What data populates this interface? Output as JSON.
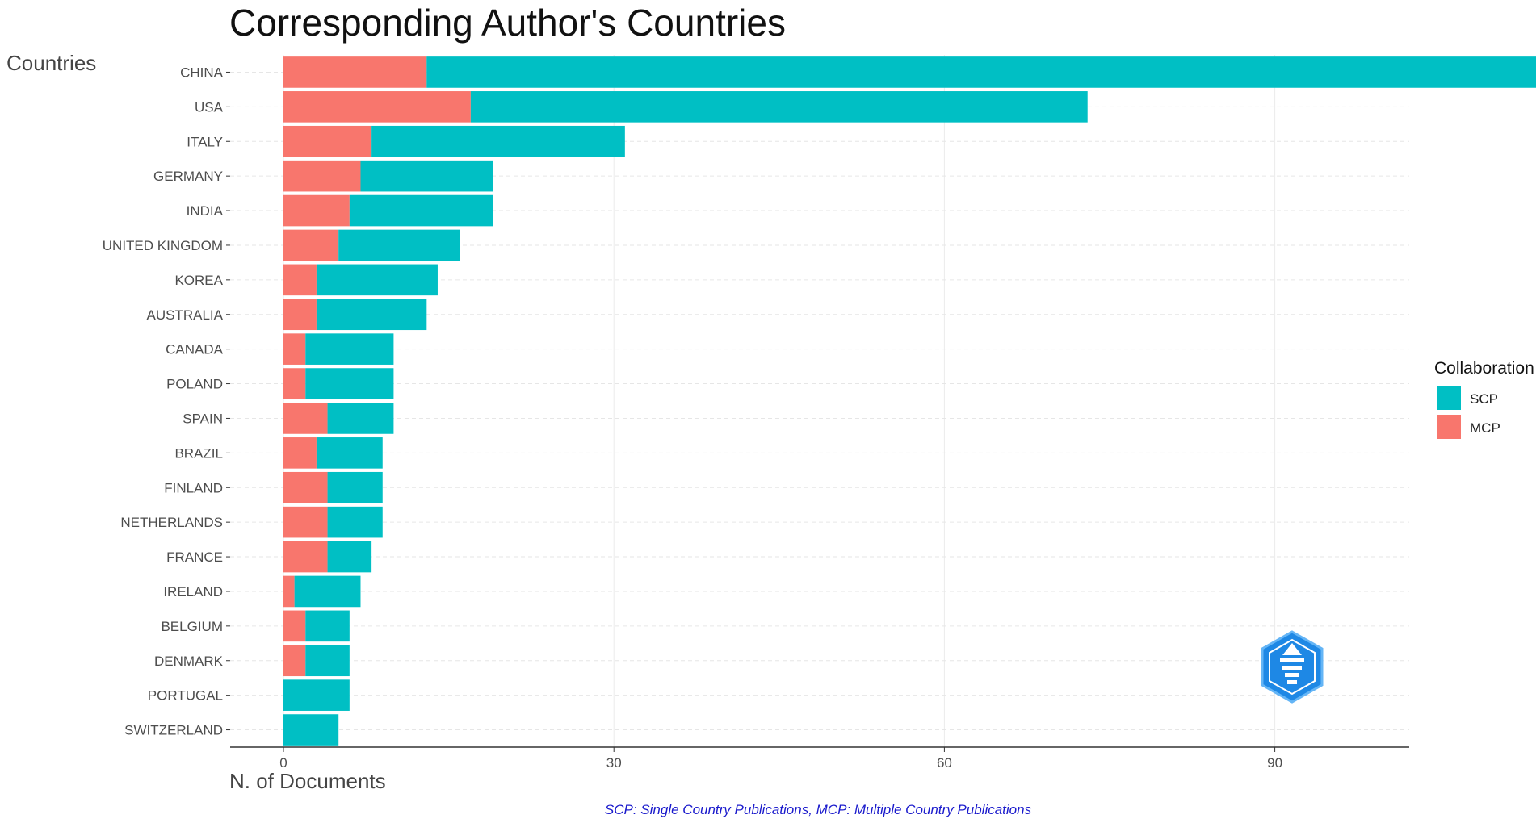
{
  "chart_data": {
    "type": "bar",
    "orientation": "horizontal",
    "stacked": true,
    "title": "Corresponding Author's Countries",
    "ylabel": "Countries",
    "xlabel": "N. of Documents",
    "caption": "SCP: Single Country Publications, MCP: Multiple Country Publications",
    "categories": [
      "CHINA",
      "USA",
      "ITALY",
      "GERMANY",
      "INDIA",
      "UNITED KINGDOM",
      "KOREA",
      "AUSTRALIA",
      "CANADA",
      "POLAND",
      "SPAIN",
      "BRAZIL",
      "FINLAND",
      "NETHERLANDS",
      "FRANCE",
      "IRELAND",
      "BELGIUM",
      "DENMARK",
      "PORTUGAL",
      "SWITZERLAND"
    ],
    "series": [
      {
        "name": "MCP",
        "color": "#F8766D",
        "values": [
          13,
          17,
          8,
          7,
          6,
          5,
          3,
          3,
          2,
          2,
          4,
          3,
          4,
          4,
          4,
          1,
          2,
          2,
          0,
          0
        ]
      },
      {
        "name": "SCP",
        "color": "#00BFC4",
        "values": [
          104,
          56,
          23,
          12,
          13,
          11,
          11,
          10,
          8,
          8,
          6,
          6,
          5,
          5,
          4,
          6,
          4,
          4,
          6,
          5
        ]
      }
    ],
    "xlim": [
      0,
      123
    ],
    "xticks": [
      0,
      30,
      60,
      90,
      120
    ],
    "grid": true,
    "legend": {
      "title": "Collaboration",
      "position": "right",
      "items": [
        {
          "label": "SCP",
          "color": "#00BFC4"
        },
        {
          "label": "MCP",
          "color": "#F8766D"
        }
      ]
    }
  }
}
